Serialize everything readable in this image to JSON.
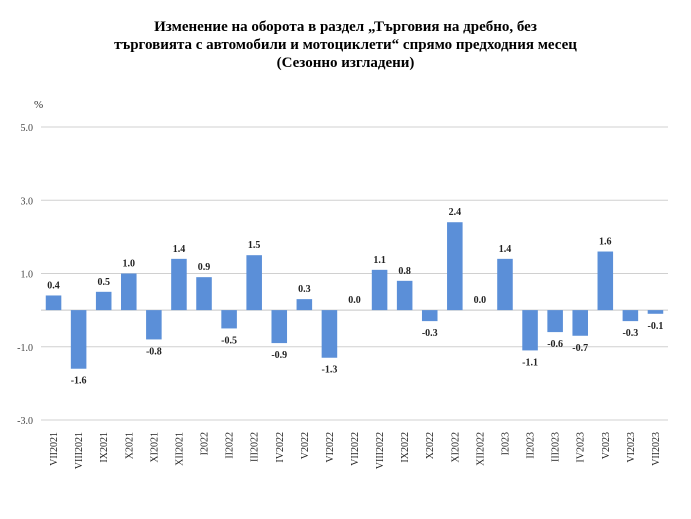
{
  "chart_data": {
    "type": "bar",
    "title_lines": [
      "Изменение на оборота в раздел „Търговия на дребно, без",
      "търговията с автомобили и мотоциклети“ спрямо предходния месец",
      "(Сезонно изгладени)"
    ],
    "ylabel": "%",
    "xlabel": "",
    "ylim": [
      -3.0,
      5.0
    ],
    "yticks": [
      "5.0",
      "3.0",
      "1.0",
      "-1.0",
      "-3.0"
    ],
    "grid": true,
    "bar_color": "#5B8FD8",
    "categories": [
      "VII2021",
      "VIII2021",
      "IX2021",
      "X2021",
      "XI2021",
      "XII2021",
      "I2022",
      "II2022",
      "III2022",
      "IV2022",
      "V2022",
      "VI2022",
      "VII2022",
      "VIII2022",
      "IX2022",
      "X2022",
      "XI2022",
      "XII2022",
      "I2023",
      "II2023",
      "III2023",
      "IV2023",
      "V2023",
      "VI2023",
      "VII2023"
    ],
    "values": [
      0.4,
      -1.6,
      0.5,
      1.0,
      -0.8,
      1.4,
      0.9,
      -0.5,
      1.5,
      -0.9,
      0.3,
      -1.3,
      0.0,
      1.1,
      0.8,
      -0.3,
      2.4,
      0.0,
      1.4,
      -1.1,
      -0.6,
      -0.7,
      1.6,
      -0.3,
      -0.1
    ],
    "data_labels": [
      "0.4",
      "-1.6",
      "0.5",
      "1.0",
      "-0.8",
      "1.4",
      "0.9",
      "-0.5",
      "1.5",
      "-0.9",
      "0.3",
      "-1.3",
      "0.0",
      "1.1",
      "0.8",
      "-0.3",
      "2.4",
      "0.0",
      "1.4",
      "-1.1",
      "-0.6",
      "-0.7",
      "1.6",
      "-0.3",
      "-0.1"
    ]
  }
}
